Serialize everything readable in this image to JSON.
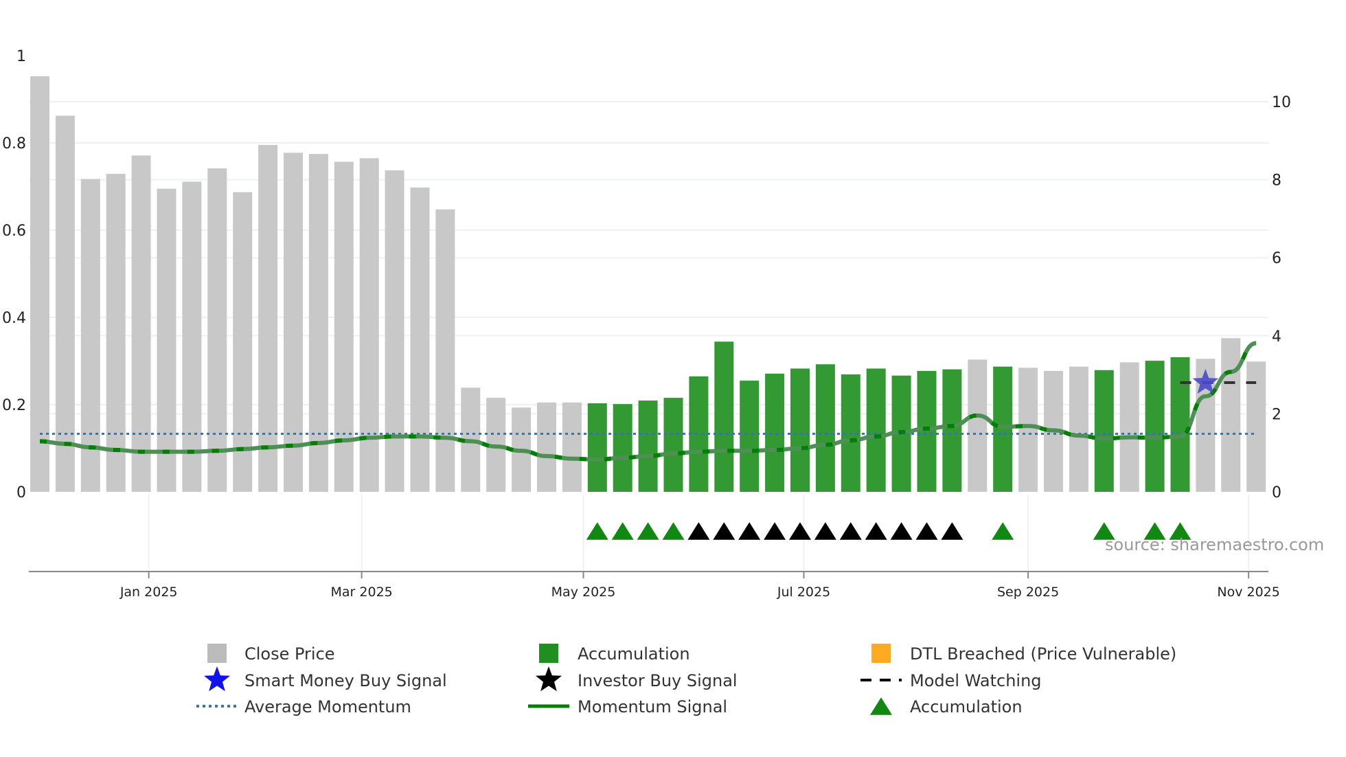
{
  "chart_data": {
    "type": "bar",
    "title": "",
    "source": "source: sharemaestro.com",
    "left_axis": {
      "ylim": [
        0,
        1
      ],
      "ticks": [
        0,
        0.2,
        0.4,
        0.6,
        0.8,
        1
      ],
      "tick_labels": [
        "0",
        "0.2",
        "0.4",
        "0.6",
        "0.8",
        "1"
      ]
    },
    "right_axis": {
      "ylim": [
        0,
        10.6
      ],
      "ticks": [
        0,
        2,
        4,
        6,
        8,
        10
      ],
      "tick_labels": [
        "0",
        "2",
        "4",
        "6",
        "8",
        "10"
      ]
    },
    "x_ticks": [
      {
        "pos": 4.3,
        "label": "Jan 2025"
      },
      {
        "pos": 12.7,
        "label": "Mar 2025"
      },
      {
        "pos": 21.45,
        "label": "May 2025"
      },
      {
        "pos": 30.15,
        "label": "Jul 2025"
      },
      {
        "pos": 39.0,
        "label": "Sep 2025"
      },
      {
        "pos": 47.7,
        "label": "Nov 2025"
      }
    ],
    "close_price": [
      10.65,
      9.64,
      8.02,
      8.15,
      8.62,
      7.77,
      7.95,
      8.29,
      7.68,
      8.89,
      8.69,
      8.66,
      8.46,
      8.55,
      8.24,
      7.8,
      7.24,
      2.67,
      2.41,
      2.16,
      2.29,
      2.29,
      2.27,
      2.25,
      2.34,
      2.41,
      2.96,
      3.85,
      2.85,
      3.03,
      3.16,
      3.27,
      3.01,
      3.16,
      2.98,
      3.1,
      3.14,
      3.39,
      3.21,
      3.18,
      3.1,
      3.21,
      3.12,
      3.32,
      3.36,
      3.45,
      3.41,
      3.94,
      3.34
    ],
    "bar_state": [
      "c",
      "c",
      "c",
      "c",
      "c",
      "c",
      "c",
      "c",
      "c",
      "c",
      "c",
      "c",
      "c",
      "c",
      "c",
      "c",
      "c",
      "c",
      "c",
      "c",
      "c",
      "c",
      "a",
      "a",
      "a",
      "a",
      "a",
      "a",
      "a",
      "a",
      "a",
      "a",
      "a",
      "a",
      "a",
      "a",
      "a",
      "c",
      "a",
      "c",
      "c",
      "c",
      "a",
      "c",
      "a",
      "a",
      "c",
      "c",
      "c"
    ],
    "momentum": [
      0.116,
      0.11,
      0.102,
      0.096,
      0.092,
      0.092,
      0.092,
      0.094,
      0.098,
      0.102,
      0.106,
      0.112,
      0.118,
      0.124,
      0.127,
      0.127,
      0.124,
      0.116,
      0.104,
      0.094,
      0.082,
      0.076,
      0.074,
      0.078,
      0.082,
      0.088,
      0.092,
      0.094,
      0.094,
      0.096,
      0.1,
      0.108,
      0.118,
      0.127,
      0.137,
      0.145,
      0.151,
      0.175,
      0.149,
      0.151,
      0.141,
      0.129,
      0.122,
      0.125,
      0.124,
      0.127,
      0.219,
      0.275,
      0.341
    ],
    "average_momentum": 0.133,
    "model_watching": {
      "from": 45,
      "to": 48,
      "value": 2.8
    },
    "smart_money_buy": [
      {
        "index": 46,
        "value": 2.8
      }
    ],
    "markers": {
      "accumulation": [
        22,
        23,
        24,
        25,
        38,
        42,
        44,
        45
      ],
      "investor_buy": [
        26,
        27,
        28,
        29,
        30,
        31,
        32,
        33,
        34,
        35,
        36
      ]
    },
    "colors": {
      "close": "#c8c8c8",
      "accumulation": "#339933",
      "momentum": "#008000",
      "momentum_faded": "#4e8f55",
      "avg": "#3a75a8",
      "dtl": "#ffaa22",
      "star": "#4a4acc",
      "black": "#000000"
    },
    "legend": [
      {
        "label": "Close Price",
        "icon": "gray-square"
      },
      {
        "label": "Accumulation",
        "icon": "green-square"
      },
      {
        "label": "DTL Breached (Price Vulnerable)",
        "icon": "orange-square"
      },
      {
        "label": "Smart Money Buy Signal",
        "icon": "blue-star"
      },
      {
        "label": "Investor Buy Signal",
        "icon": "black-star"
      },
      {
        "label": "Model Watching",
        "icon": "dashed-line"
      },
      {
        "label": "Average Momentum",
        "icon": "dotted-line"
      },
      {
        "label": "Momentum Signal",
        "icon": "green-line"
      },
      {
        "label": "Accumulation",
        "icon": "green-triangle"
      }
    ]
  }
}
